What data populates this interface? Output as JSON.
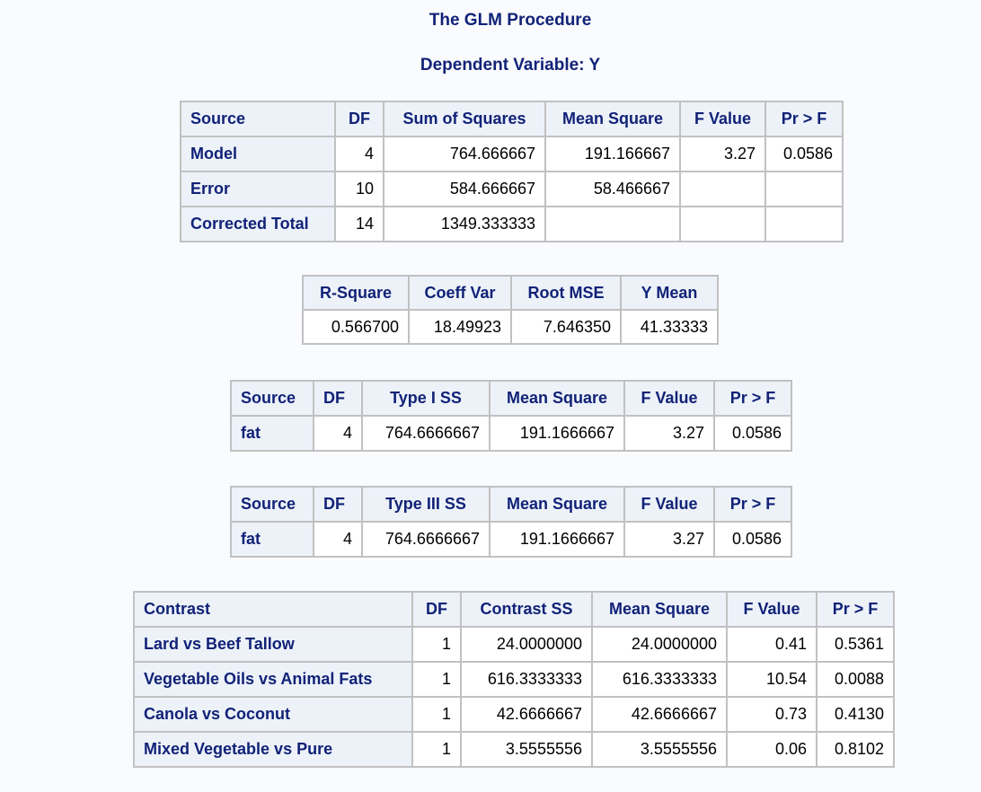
{
  "procedure_title": "The GLM Procedure",
  "dependent_title": "Dependent Variable: Y",
  "anova": {
    "headers": [
      "Source",
      "DF",
      "Sum of Squares",
      "Mean Square",
      "F Value",
      "Pr > F"
    ],
    "rows": [
      {
        "source": "Model",
        "df": "4",
        "ss": "764.666667",
        "ms": "191.166667",
        "f": "3.27",
        "p": "0.0586"
      },
      {
        "source": "Error",
        "df": "10",
        "ss": "584.666667",
        "ms": "58.466667",
        "f": "",
        "p": ""
      },
      {
        "source": "Corrected Total",
        "df": "14",
        "ss": "1349.333333",
        "ms": "",
        "f": "",
        "p": ""
      }
    ]
  },
  "fit": {
    "headers": [
      "R-Square",
      "Coeff Var",
      "Root MSE",
      "Y Mean"
    ],
    "values": [
      "0.566700",
      "18.49923",
      "7.646350",
      "41.33333"
    ]
  },
  "type1": {
    "headers": [
      "Source",
      "DF",
      "Type I SS",
      "Mean Square",
      "F Value",
      "Pr > F"
    ],
    "rows": [
      {
        "source": "fat",
        "df": "4",
        "ss": "764.6666667",
        "ms": "191.1666667",
        "f": "3.27",
        "p": "0.0586"
      }
    ]
  },
  "type3": {
    "headers": [
      "Source",
      "DF",
      "Type III SS",
      "Mean Square",
      "F Value",
      "Pr > F"
    ],
    "rows": [
      {
        "source": "fat",
        "df": "4",
        "ss": "764.6666667",
        "ms": "191.1666667",
        "f": "3.27",
        "p": "0.0586"
      }
    ]
  },
  "contrasts": {
    "headers": [
      "Contrast",
      "DF",
      "Contrast SS",
      "Mean Square",
      "F Value",
      "Pr > F"
    ],
    "rows": [
      {
        "source": "Lard vs Beef Tallow",
        "df": "1",
        "ss": "24.0000000",
        "ms": "24.0000000",
        "f": "0.41",
        "p": "0.5361"
      },
      {
        "source": "Vegetable Oils vs Animal Fats",
        "df": "1",
        "ss": "616.3333333",
        "ms": "616.3333333",
        "f": "10.54",
        "p": "0.0088"
      },
      {
        "source": "Canola vs Coconut",
        "df": "1",
        "ss": "42.6666667",
        "ms": "42.6666667",
        "f": "0.73",
        "p": "0.4130"
      },
      {
        "source": "Mixed Vegetable vs Pure",
        "df": "1",
        "ss": "3.5555556",
        "ms": "3.5555556",
        "f": "0.06",
        "p": "0.8102"
      }
    ]
  }
}
